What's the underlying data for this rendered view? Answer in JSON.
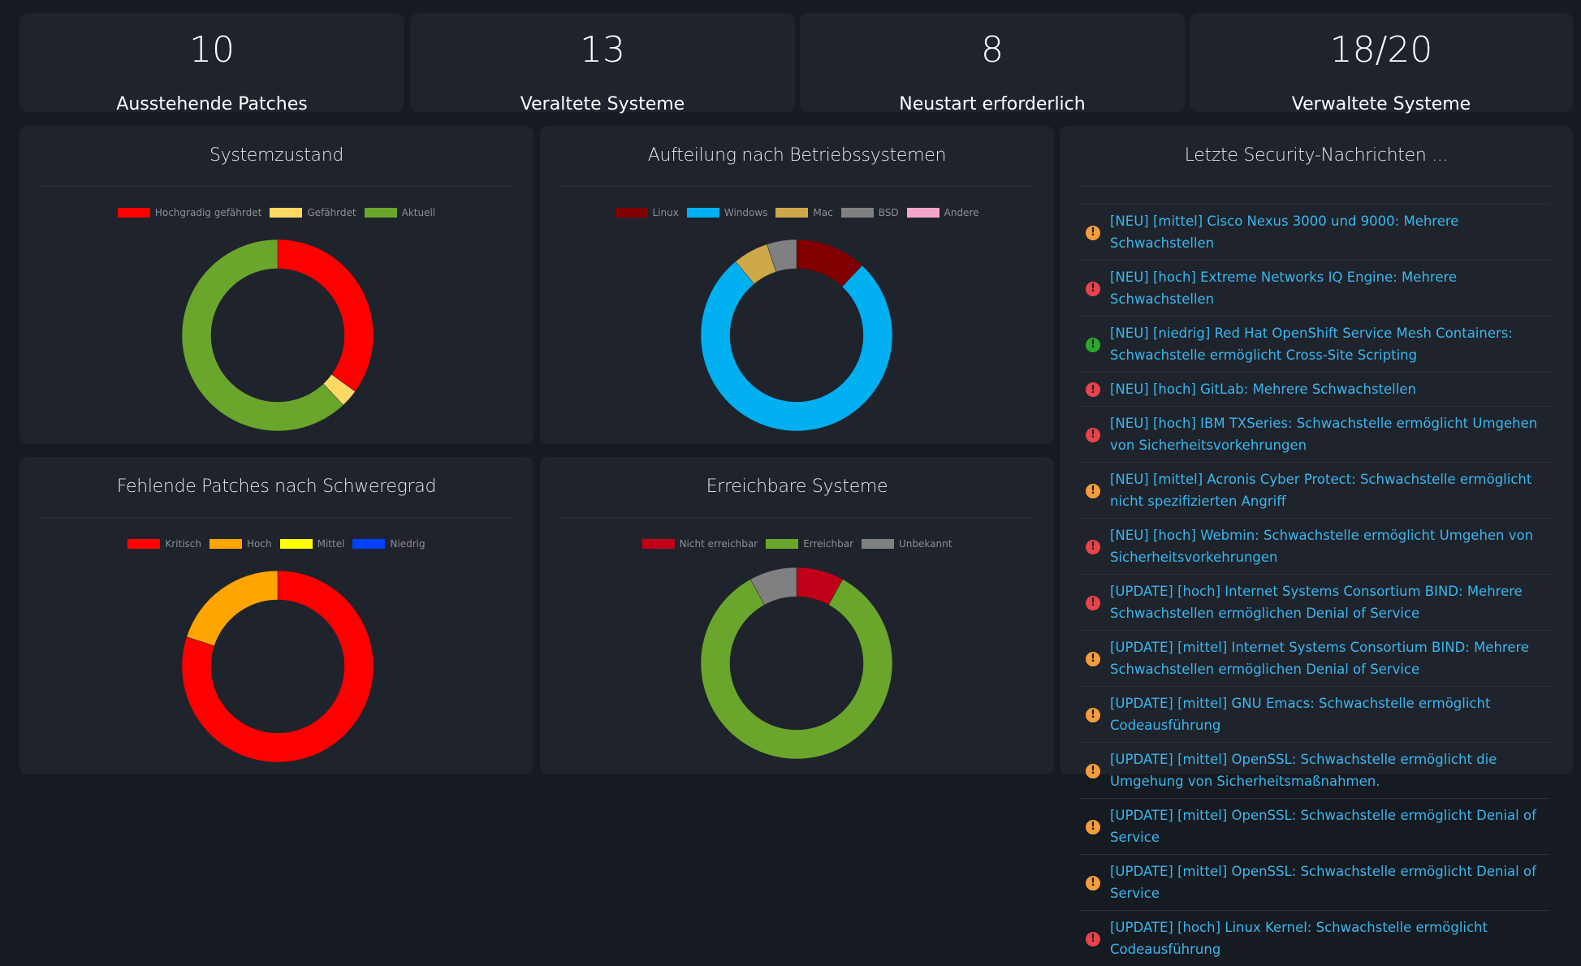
{
  "stats": [
    {
      "value": "10",
      "label": "Ausstehende Patches"
    },
    {
      "value": "13",
      "label": "Veraltete Systeme"
    },
    {
      "value": "8",
      "label": "Neustart erforderlich"
    },
    {
      "value": "18/20",
      "label": "Verwaltete Systeme"
    }
  ],
  "panels": {
    "systemzustand": {
      "title": "Systemzustand"
    },
    "betriebssysteme": {
      "title": "Aufteilung nach Betriebssystemen"
    },
    "patches": {
      "title": "Fehlende Patches nach Schweregrad"
    },
    "erreichbar": {
      "title": "Erreichbare Systeme"
    },
    "news": {
      "title": "Letzte Security-Nachrichten ..."
    }
  },
  "chart_data": [
    {
      "id": "systemzustand",
      "type": "pie",
      "categories": [
        "Hochgradig gefährdet",
        "Gefährdet",
        "Aktuell"
      ],
      "values": [
        35,
        3,
        62
      ],
      "colors": [
        "#ff0000",
        "#ffd966",
        "#6aa62b"
      ]
    },
    {
      "id": "betriebssysteme",
      "type": "pie",
      "categories": [
        "Linux",
        "Windows",
        "Mac",
        "BSD",
        "Andere"
      ],
      "values": [
        12,
        77,
        6,
        5,
        0
      ],
      "colors": [
        "#800000",
        "#00b0f0",
        "#cca849",
        "#808080",
        "#f4a6c8"
      ]
    },
    {
      "id": "patches",
      "type": "pie",
      "categories": [
        "Kritisch",
        "Hoch",
        "Mittel",
        "Niedrig"
      ],
      "values": [
        80,
        20,
        0,
        0
      ],
      "colors": [
        "#ff0000",
        "#ffa500",
        "#ffff00",
        "#0040ff"
      ]
    },
    {
      "id": "erreichbar",
      "type": "pie",
      "categories": [
        "Nicht erreichbar",
        "Erreichbar",
        "Unbekannt"
      ],
      "values": [
        8,
        84,
        8
      ],
      "colors": [
        "#c00018",
        "#6aa62b",
        "#808080"
      ]
    }
  ],
  "news": [
    {
      "severity": "mittel",
      "text": "[NEU] [mittel] Cisco Nexus 3000 und 9000: Mehrere Schwachstellen"
    },
    {
      "severity": "hoch",
      "text": "[NEU] [hoch] Extreme Networks IQ Engine: Mehrere Schwachstellen"
    },
    {
      "severity": "niedrig",
      "text": "[NEU] [niedrig] Red Hat OpenShift Service Mesh Containers: Schwachstelle ermöglicht Cross-Site Scripting"
    },
    {
      "severity": "hoch",
      "text": "[NEU] [hoch] GitLab: Mehrere Schwachstellen"
    },
    {
      "severity": "hoch",
      "text": "[NEU] [hoch] IBM TXSeries: Schwachstelle ermöglicht Umgehen von Sicherheitsvorkehrungen"
    },
    {
      "severity": "mittel",
      "text": "[NEU] [mittel] Acronis Cyber Protect: Schwachstelle ermöglicht nicht spezifizierten Angriff"
    },
    {
      "severity": "hoch",
      "text": "[NEU] [hoch] Webmin: Schwachstelle ermöglicht Umgehen von Sicherheitsvorkehrungen"
    },
    {
      "severity": "hoch",
      "text": "[UPDATE] [hoch] Internet Systems Consortium BIND: Mehrere Schwachstellen ermöglichen Denial of Service"
    },
    {
      "severity": "mittel",
      "text": "[UPDATE] [mittel] Internet Systems Consortium BIND: Mehrere Schwachstellen ermöglichen Denial of Service"
    },
    {
      "severity": "mittel",
      "text": "[UPDATE] [mittel] GNU Emacs: Schwachstelle ermöglicht Codeausführung"
    },
    {
      "severity": "mittel",
      "text": "[UPDATE] [mittel] OpenSSL: Schwachstelle ermöglicht die Umgehung von Sicherheitsmaßnahmen."
    },
    {
      "severity": "mittel",
      "text": "[UPDATE] [mittel] OpenSSL: Schwachstelle ermöglicht Denial of Service"
    },
    {
      "severity": "mittel",
      "text": "[UPDATE] [mittel] OpenSSL: Schwachstelle ermöglicht Denial of Service"
    },
    {
      "severity": "hoch",
      "text": "[UPDATE] [hoch] Linux Kernel: Schwachstelle ermöglicht Codeausführung"
    }
  ],
  "severity_colors": {
    "hoch": "#e8424a",
    "mittel": "#f59d3a",
    "niedrig": "#2aa82a"
  }
}
